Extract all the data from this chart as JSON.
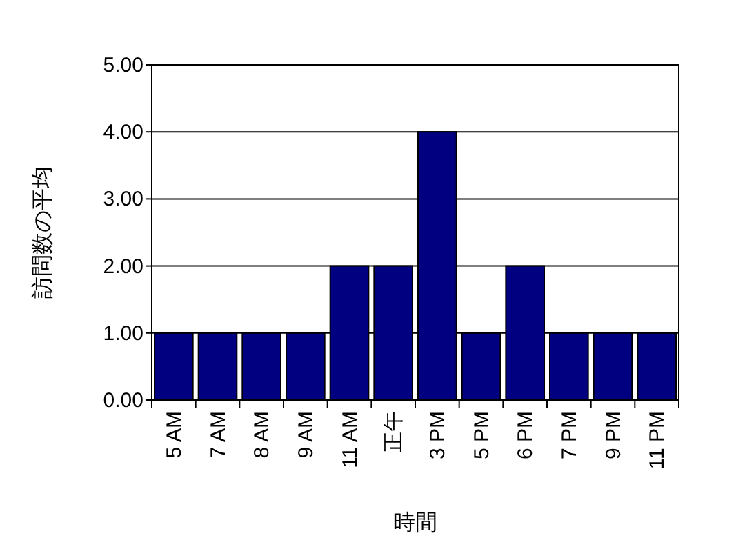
{
  "chart_data": {
    "type": "bar",
    "xlabel": "時間",
    "ylabel": "訪問数の平均",
    "categories": [
      "5 AM",
      "7 AM",
      "8 AM",
      "9 AM",
      "11 AM",
      "正午",
      "3 PM",
      "5 PM",
      "6 PM",
      "7 PM",
      "9 PM",
      "11 PM"
    ],
    "values": [
      1,
      1,
      1,
      1,
      2,
      2,
      4,
      1,
      2,
      1,
      1,
      1
    ],
    "color": "#000080",
    "ylim": [
      0,
      5
    ],
    "yticks": [
      {
        "value": 0,
        "label": "0.00"
      },
      {
        "value": 1,
        "label": "1.00"
      },
      {
        "value": 2,
        "label": "2.00"
      },
      {
        "value": 3,
        "label": "3.00"
      },
      {
        "value": 4,
        "label": "4.00"
      },
      {
        "value": 5,
        "label": "5.00"
      }
    ],
    "grid": "y"
  }
}
